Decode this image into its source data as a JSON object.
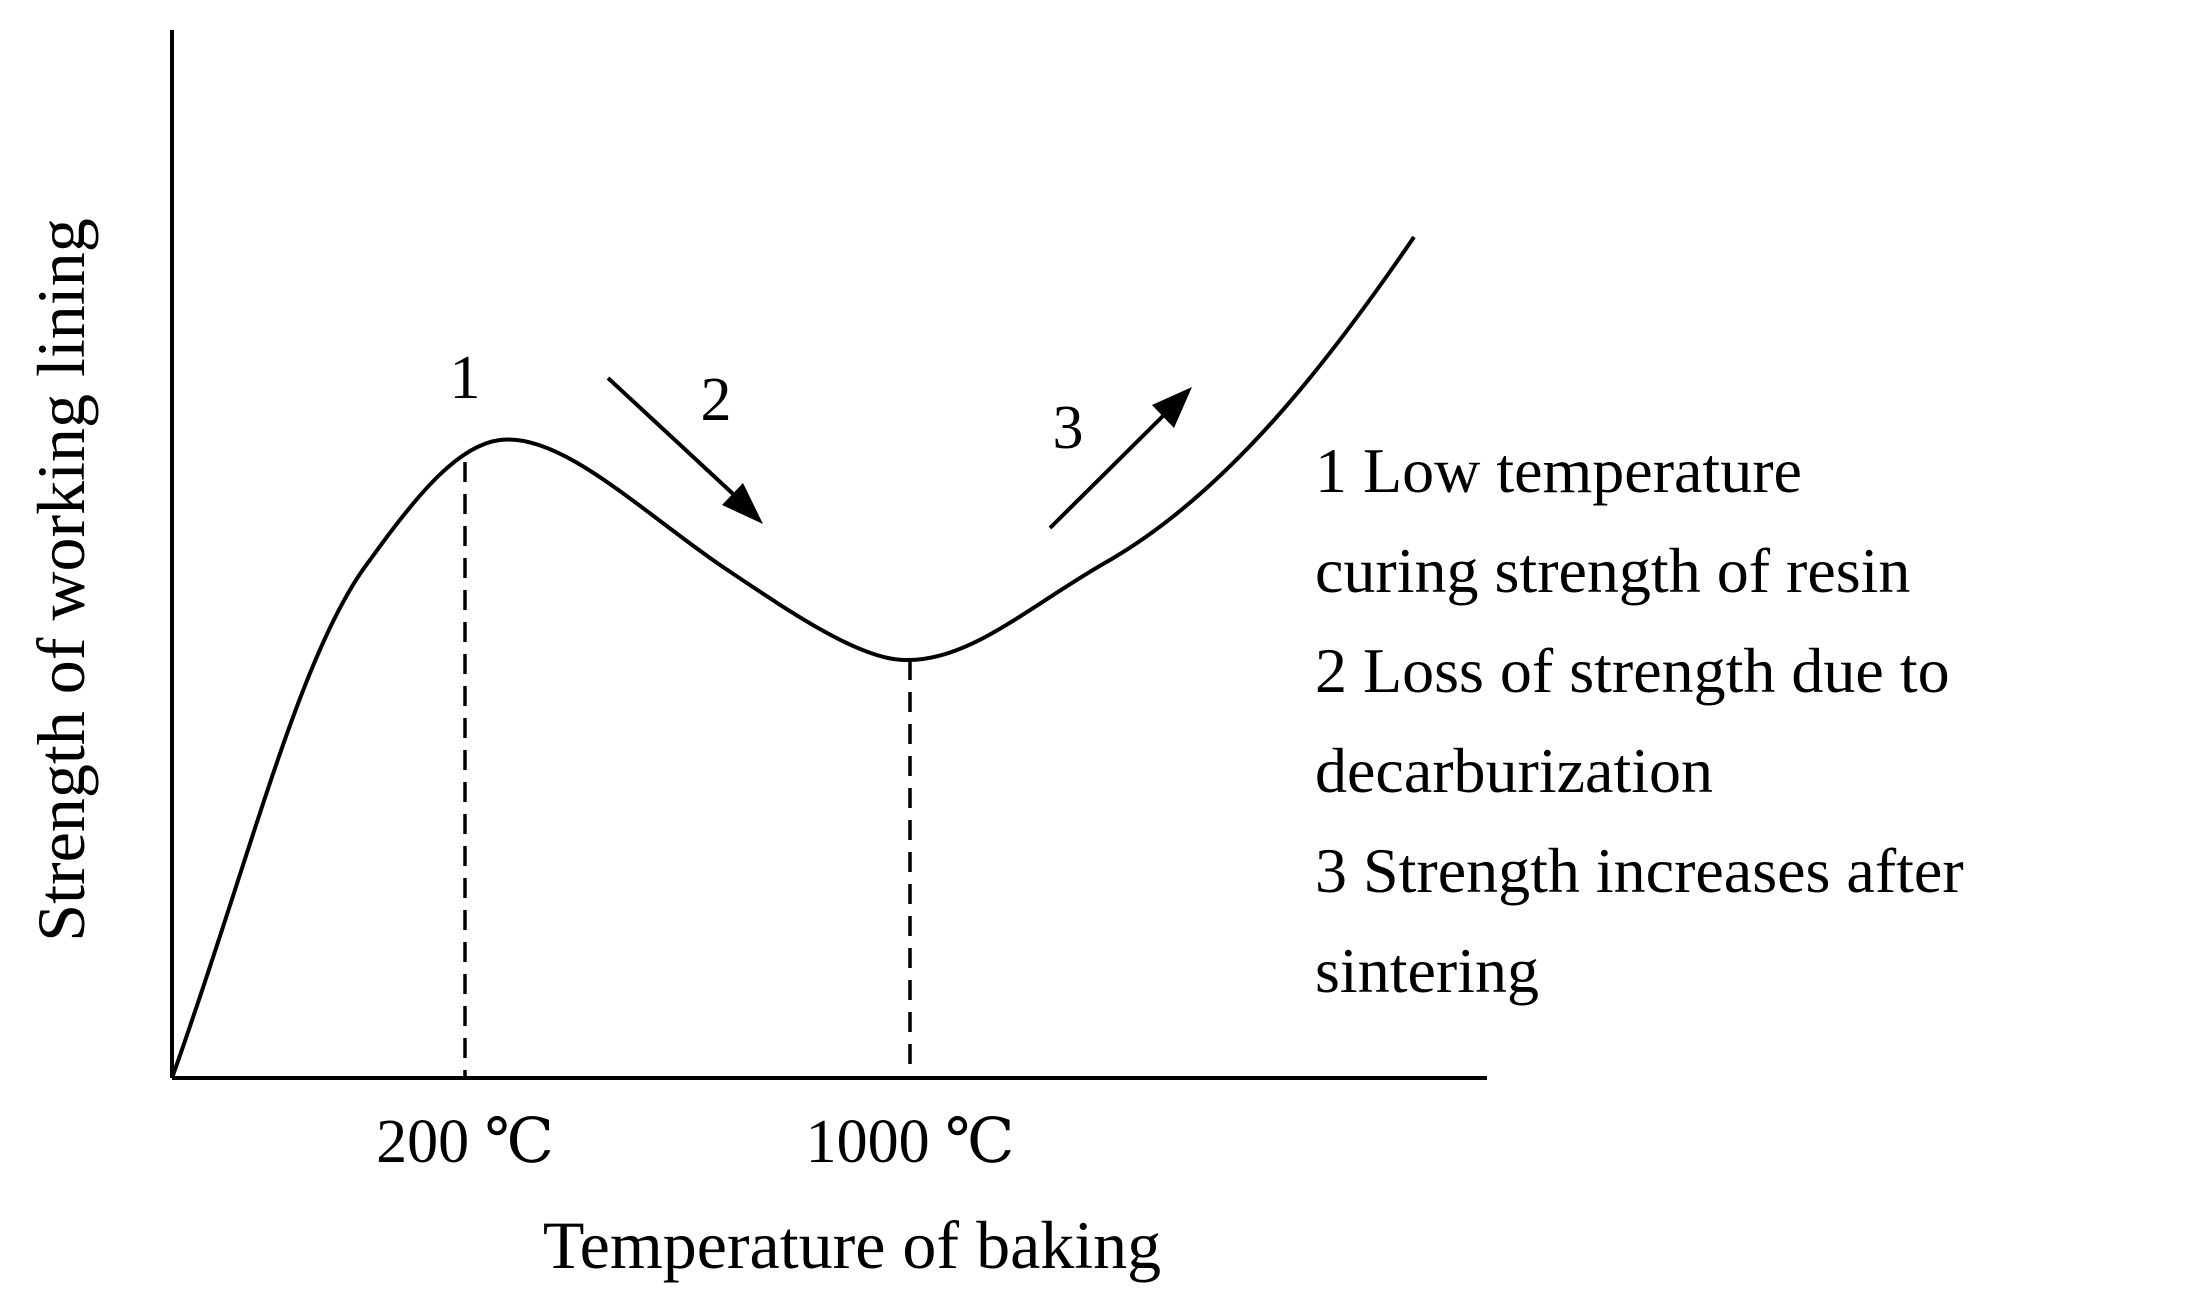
{
  "chart_data": {
    "type": "line",
    "xlabel": "Temperature of baking",
    "ylabel": "Strength of working lining",
    "x_ticks": [
      "200 ℃",
      "1000 ℃"
    ],
    "curve_shape": "rises to a local maximum near 200 ℃, falls to a local minimum near 1000 ℃, then rises steadily",
    "stage_markers": [
      "1",
      "2",
      "3"
    ],
    "legend": [
      "1 Low temperature",
      "curing strength of resin",
      "2 Loss of strength due to",
      "decarburization",
      "3 Strength increases after",
      "sintering"
    ],
    "grid": false,
    "axis_numbers_shown": false
  }
}
